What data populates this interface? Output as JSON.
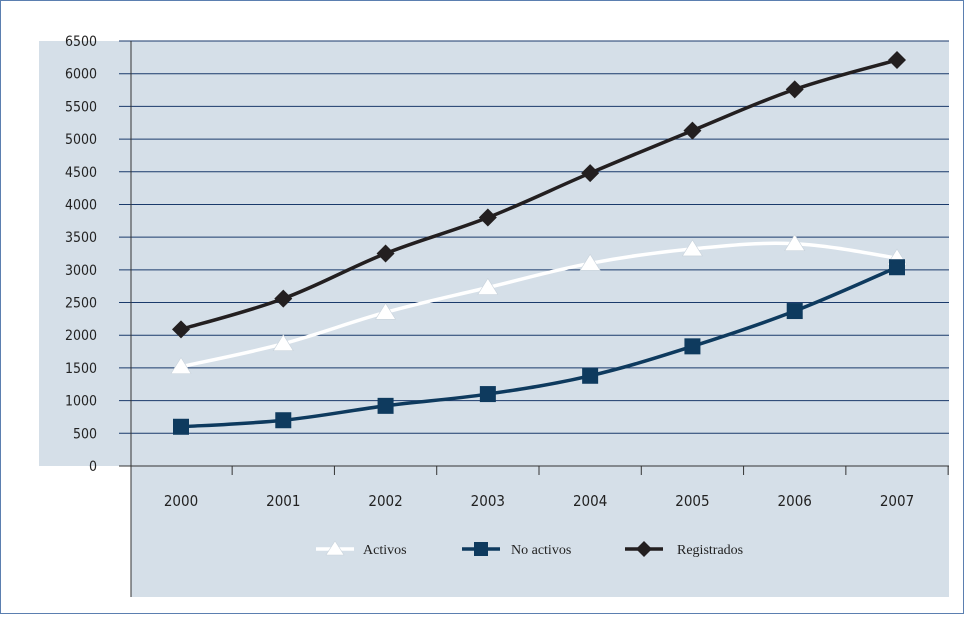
{
  "chart_data": {
    "type": "line",
    "title": "",
    "xlabel": "",
    "ylabel": "",
    "categories": [
      "2000",
      "2001",
      "2002",
      "2003",
      "2004",
      "2005",
      "2006",
      "2007"
    ],
    "ylim": [
      0,
      6500
    ],
    "yticks": [
      0,
      500,
      1000,
      1500,
      2000,
      2500,
      3000,
      3500,
      4000,
      4500,
      5000,
      5500,
      6000,
      6500
    ],
    "grid": true,
    "legend_position": "bottom",
    "series": [
      {
        "name": "Activos",
        "marker": "triangle",
        "color": "#ffffff",
        "values": [
          1520,
          1870,
          2350,
          2730,
          3100,
          3320,
          3400,
          3180
        ]
      },
      {
        "name": "No activos",
        "marker": "square",
        "color": "#0e3a5e",
        "values": [
          600,
          700,
          920,
          1100,
          1380,
          1830,
          2370,
          3040
        ]
      },
      {
        "name": "Registrados",
        "marker": "diamond",
        "color": "#231f20",
        "values": [
          2090,
          2560,
          3250,
          3800,
          4480,
          5130,
          5760,
          6210
        ]
      }
    ]
  },
  "colors": {
    "plot_bg": "#d5dfe8",
    "grid": "#1a3a6b",
    "axis": "#333333"
  }
}
